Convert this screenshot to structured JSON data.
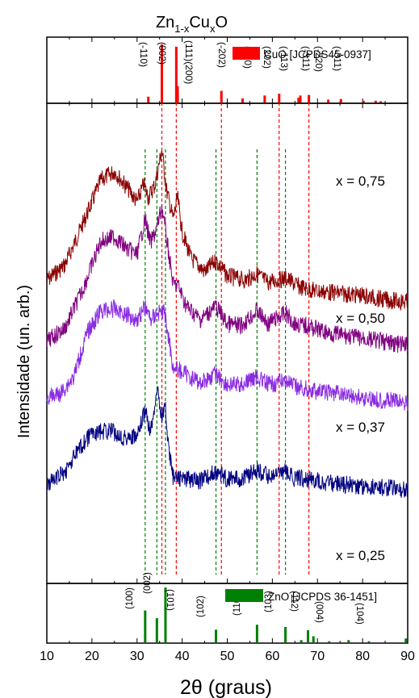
{
  "title": {
    "base": "Zn",
    "sub1": "1-x",
    "mid": "Cu",
    "sub2": "x",
    "end": "O"
  },
  "chart_data": [
    {
      "type": "bar",
      "panel": "top",
      "legend": "CuO [JCPDS45-0937]",
      "color": "#ff0000",
      "xlim": [
        10,
        90
      ],
      "peaks": [
        {
          "x": 32.5,
          "h": 0.1,
          "label": "(-110)"
        },
        {
          "x": 35.5,
          "h": 1.0,
          "label": "(002)"
        },
        {
          "x": 38.7,
          "h": 0.96,
          "label": "(111)(200)"
        },
        {
          "x": 39.0,
          "h": 0.28,
          "label": ""
        },
        {
          "x": 48.7,
          "h": 0.2,
          "label": "(-202)"
        },
        {
          "x": 53.4,
          "h": 0.07,
          "label": "(020)"
        },
        {
          "x": 58.3,
          "h": 0.12,
          "label": "(202)"
        },
        {
          "x": 61.5,
          "h": 0.15,
          "label": "(-113)"
        },
        {
          "x": 65.8,
          "h": 0.08,
          "label": ""
        },
        {
          "x": 66.2,
          "h": 0.12,
          "label": "(-311)"
        },
        {
          "x": 68.1,
          "h": 0.13,
          "label": "(-220)"
        },
        {
          "x": 72.4,
          "h": 0.05,
          "label": "(-311)"
        },
        {
          "x": 75.2,
          "h": 0.06,
          "label": ""
        },
        {
          "x": 80.2,
          "h": 0.03,
          "label": ""
        },
        {
          "x": 82.9,
          "h": 0.03,
          "label": ""
        },
        {
          "x": 84.0,
          "h": 0.02,
          "label": ""
        }
      ]
    },
    {
      "type": "line",
      "panel": "middle",
      "ylabel": "Intensidade (un. arb.)",
      "xlim": [
        10,
        90
      ],
      "reference_lines": {
        "zno": {
          "color": "#008000",
          "x": [
            31.8,
            34.4,
            47.5,
            56.6,
            62.9
          ]
        },
        "cuo": {
          "color": "#ff0000",
          "x": [
            35.5,
            38.7,
            48.7,
            61.5,
            68.1
          ]
        },
        "extra": {
          "color": "#008000",
          "x": [
            36.3
          ]
        }
      },
      "series": [
        {
          "name": "x = 0,75",
          "color": "#8b0000",
          "points": [
            [
              10,
              0.38
            ],
            [
              14,
              0.45
            ],
            [
              18,
              0.64
            ],
            [
              22,
              0.84
            ],
            [
              25,
              0.88
            ],
            [
              28,
              0.8
            ],
            [
              30,
              0.74
            ],
            [
              31.5,
              0.82
            ],
            [
              32.5,
              0.76
            ],
            [
              34,
              0.82
            ],
            [
              35.5,
              0.98
            ],
            [
              36.5,
              0.8
            ],
            [
              38,
              0.66
            ],
            [
              39,
              0.76
            ],
            [
              40,
              0.6
            ],
            [
              42,
              0.48
            ],
            [
              45,
              0.42
            ],
            [
              47.5,
              0.47
            ],
            [
              50,
              0.4
            ],
            [
              54,
              0.38
            ],
            [
              56.5,
              0.41
            ],
            [
              59,
              0.37
            ],
            [
              62.9,
              0.39
            ],
            [
              66,
              0.35
            ],
            [
              70,
              0.33
            ],
            [
              75,
              0.32
            ],
            [
              80,
              0.31
            ],
            [
              85,
              0.29
            ],
            [
              90,
              0.28
            ]
          ]
        },
        {
          "name": "x = 0,50",
          "color": "#800080",
          "points": [
            [
              10,
              0.1
            ],
            [
              14,
              0.16
            ],
            [
              18,
              0.34
            ],
            [
              22,
              0.56
            ],
            [
              25,
              0.58
            ],
            [
              28,
              0.52
            ],
            [
              30,
              0.5
            ],
            [
              31.8,
              0.66
            ],
            [
              33,
              0.55
            ],
            [
              34.4,
              0.62
            ],
            [
              35.5,
              0.72
            ],
            [
              36.5,
              0.58
            ],
            [
              38,
              0.36
            ],
            [
              39,
              0.36
            ],
            [
              41,
              0.26
            ],
            [
              44,
              0.2
            ],
            [
              47.5,
              0.26
            ],
            [
              50,
              0.18
            ],
            [
              53,
              0.17
            ],
            [
              56.6,
              0.24
            ],
            [
              59,
              0.18
            ],
            [
              62.9,
              0.23
            ],
            [
              65,
              0.18
            ],
            [
              68,
              0.17
            ],
            [
              72,
              0.14
            ],
            [
              78,
              0.12
            ],
            [
              84,
              0.1
            ],
            [
              90,
              0.08
            ]
          ]
        },
        {
          "name": "x = 0,37",
          "color": "#8a2be2",
          "points": [
            [
              10,
              -0.16
            ],
            [
              13,
              -0.14
            ],
            [
              16,
              -0.06
            ],
            [
              19,
              0.14
            ],
            [
              22,
              0.24
            ],
            [
              25,
              0.25
            ],
            [
              28,
              0.22
            ],
            [
              30,
              0.2
            ],
            [
              31.8,
              0.26
            ],
            [
              33,
              0.2
            ],
            [
              34.4,
              0.23
            ],
            [
              36,
              0.24
            ],
            [
              37,
              0.12
            ],
            [
              38,
              -0.02
            ],
            [
              40,
              -0.04
            ],
            [
              44,
              -0.09
            ],
            [
              47.5,
              -0.05
            ],
            [
              50,
              -0.1
            ],
            [
              53,
              -0.1
            ],
            [
              56.6,
              -0.06
            ],
            [
              59,
              -0.1
            ],
            [
              62.9,
              -0.08
            ],
            [
              65,
              -0.11
            ],
            [
              70,
              -0.13
            ],
            [
              75,
              -0.14
            ],
            [
              80,
              -0.16
            ],
            [
              85,
              -0.17
            ],
            [
              90,
              -0.18
            ]
          ]
        },
        {
          "name": "x = 0,25",
          "color": "#000080",
          "points": [
            [
              10,
              -0.56
            ],
            [
              14,
              -0.5
            ],
            [
              17,
              -0.4
            ],
            [
              20,
              -0.32
            ],
            [
              24,
              -0.31
            ],
            [
              27,
              -0.34
            ],
            [
              30,
              -0.34
            ],
            [
              31.8,
              -0.22
            ],
            [
              33,
              -0.32
            ],
            [
              34.4,
              -0.12
            ],
            [
              35.5,
              -0.24
            ],
            [
              36.3,
              -0.2
            ],
            [
              37,
              -0.4
            ],
            [
              38,
              -0.52
            ],
            [
              40,
              -0.53
            ],
            [
              44,
              -0.54
            ],
            [
              47.5,
              -0.5
            ],
            [
              50,
              -0.53
            ],
            [
              53,
              -0.53
            ],
            [
              56.6,
              -0.49
            ],
            [
              59,
              -0.52
            ],
            [
              62.9,
              -0.5
            ],
            [
              65,
              -0.53
            ],
            [
              68,
              -0.53
            ],
            [
              72,
              -0.55
            ],
            [
              78,
              -0.56
            ],
            [
              84,
              -0.57
            ],
            [
              90,
              -0.58
            ]
          ]
        }
      ],
      "series_labels": [
        "x = 0,75",
        "x = 0,50",
        "x = 0,37",
        "x = 0,25"
      ]
    },
    {
      "type": "bar",
      "panel": "bottom",
      "legend": "ZnO [JCPDS 36-1451]",
      "color": "#008000",
      "xlabel": "2θ (graus)",
      "xlim": [
        10,
        90
      ],
      "xticks": [
        "10",
        "20",
        "30",
        "40",
        "50",
        "60",
        "70",
        "80",
        "90"
      ],
      "peaks": [
        {
          "x": 31.8,
          "h": 0.58,
          "label": "(100)"
        },
        {
          "x": 34.4,
          "h": 0.44,
          "label": "(002)"
        },
        {
          "x": 36.3,
          "h": 1.0,
          "label": "(101)"
        },
        {
          "x": 47.5,
          "h": 0.23,
          "label": "(102)"
        },
        {
          "x": 56.6,
          "h": 0.32,
          "label": "(110)"
        },
        {
          "x": 62.9,
          "h": 0.28,
          "label": "(103)"
        },
        {
          "x": 66.4,
          "h": 0.04,
          "label": ""
        },
        {
          "x": 67.9,
          "h": 0.22,
          "label": "(112)"
        },
        {
          "x": 69.1,
          "h": 0.11,
          "label": ""
        },
        {
          "x": 72.6,
          "h": 0.02,
          "label": "(004)"
        },
        {
          "x": 76.9,
          "h": 0.04,
          "label": ""
        },
        {
          "x": 81.4,
          "h": 0.02,
          "label": "(104)"
        },
        {
          "x": 89.6,
          "h": 0.07,
          "label": ""
        }
      ]
    }
  ]
}
